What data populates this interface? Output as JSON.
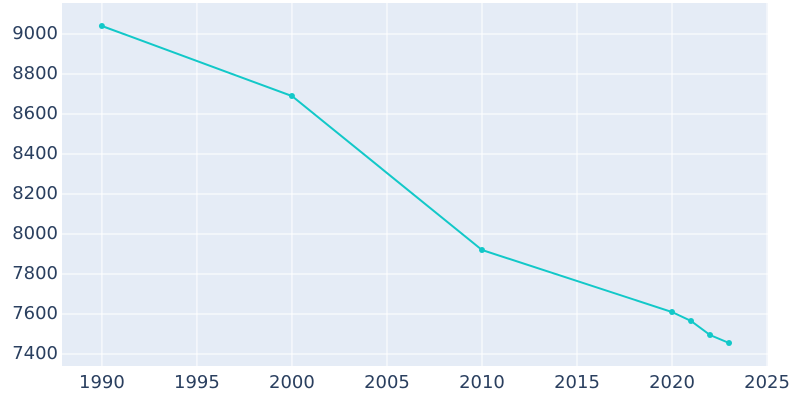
{
  "chart_data": {
    "type": "line",
    "x": [
      1990,
      2000,
      2010,
      2020,
      2021,
      2022,
      2023
    ],
    "series": [
      {
        "color": "#12c8c8",
        "values": [
          9040,
          8690,
          7920,
          7610,
          7565,
          7495,
          7455
        ]
      }
    ],
    "xlim": [
      1987.9,
      2025.05
    ],
    "xticks": [
      1990,
      1995,
      2000,
      2005,
      2010,
      2015,
      2020,
      2025
    ],
    "ylim": [
      7340,
      9155
    ],
    "yticks": [
      7400,
      7600,
      7800,
      8000,
      8200,
      8400,
      8600,
      8800,
      9000
    ],
    "grid": true
  }
}
